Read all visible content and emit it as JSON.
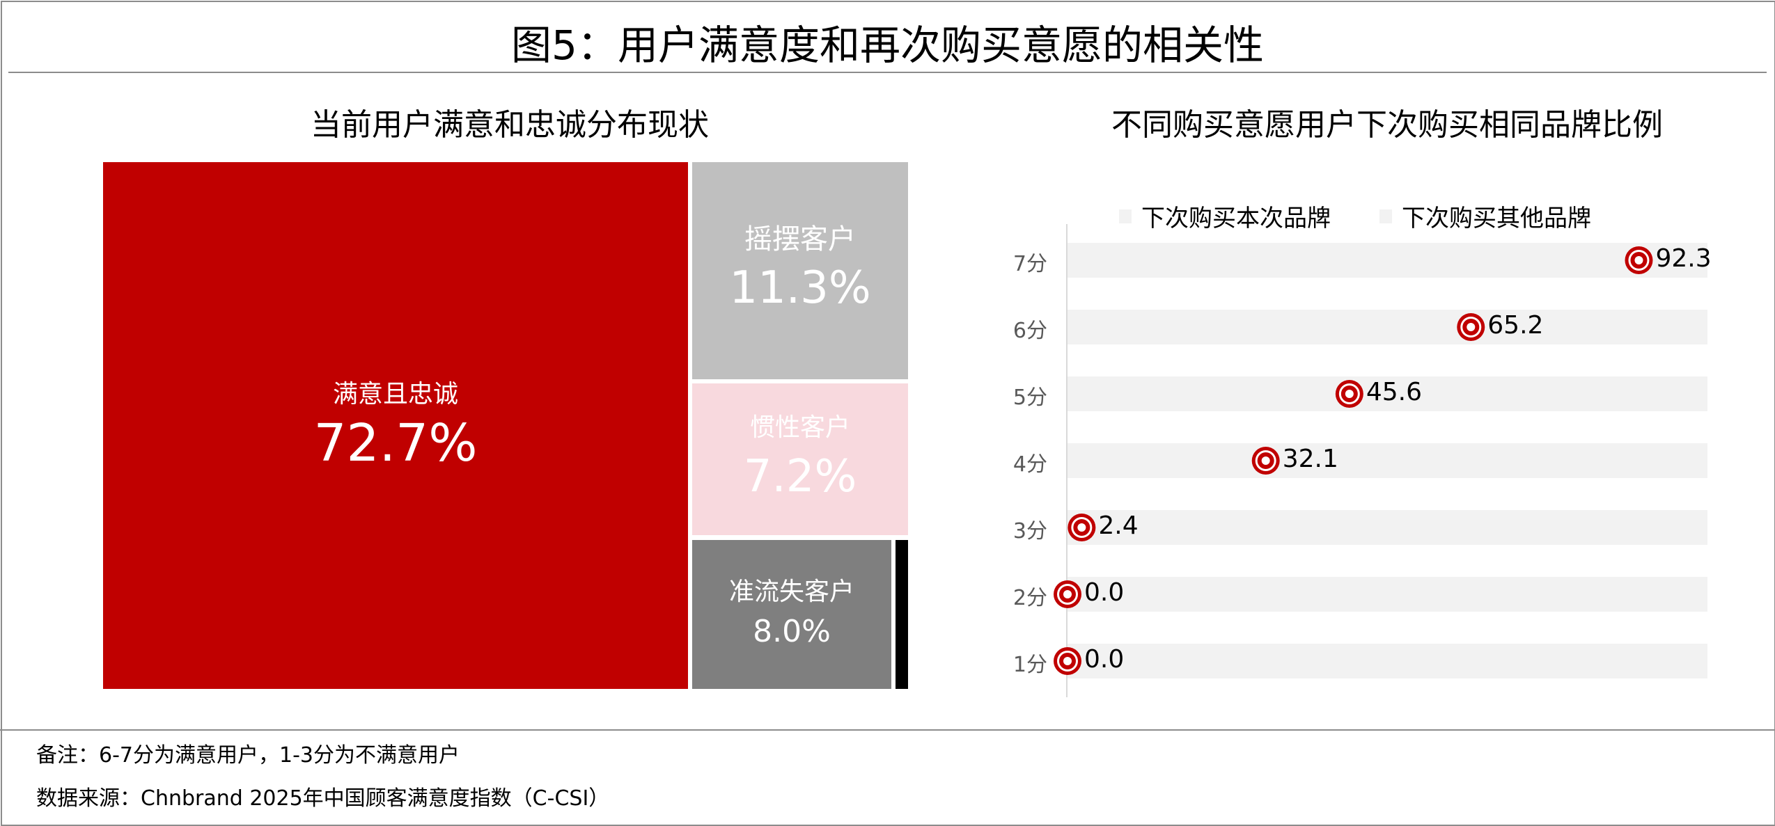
{
  "title": "图5：用户满意度和再次购买意愿的相关性",
  "left_panel": {
    "subtitle": "当前用户满意和忠诚分布现状",
    "tiles": [
      {
        "label": "满意且忠诚",
        "value": "72.7%",
        "color": "#c00000"
      },
      {
        "label": "摇摆客户",
        "value": "11.3%",
        "color": "#bfbfbf"
      },
      {
        "label": "惯性客户",
        "value": "7.2%",
        "color": "#f8d9de"
      },
      {
        "label": "准流失客户",
        "value": "8.0%",
        "color": "#7f7f7f"
      }
    ],
    "small_tile_color": "#000000"
  },
  "chart_data": {
    "type": "scatter",
    "title": "不同购买意愿用户下次购买相同品牌比例",
    "legend": [
      "下次购买本次品牌",
      "下次购买其他品牌"
    ],
    "legend_position": "top",
    "categories": [
      "7分",
      "6分",
      "5分",
      "4分",
      "3分",
      "2分",
      "1分"
    ],
    "values": [
      92.3,
      65.2,
      45.6,
      32.1,
      2.4,
      0.0,
      0.0
    ],
    "labels": [
      "92.3",
      "65.2",
      "45.6",
      "32.1",
      "2.4",
      "0.0",
      "0.0"
    ],
    "xlim": [
      0,
      100
    ],
    "marker_color": "#c00000",
    "band_color": "#f2f2f2"
  },
  "footer": {
    "note": "备注：6-7分为满意用户，1-3分为不满意用户",
    "source": "数据来源：Chnbrand 2025年中国顾客满意度指数（C-CSI）"
  }
}
